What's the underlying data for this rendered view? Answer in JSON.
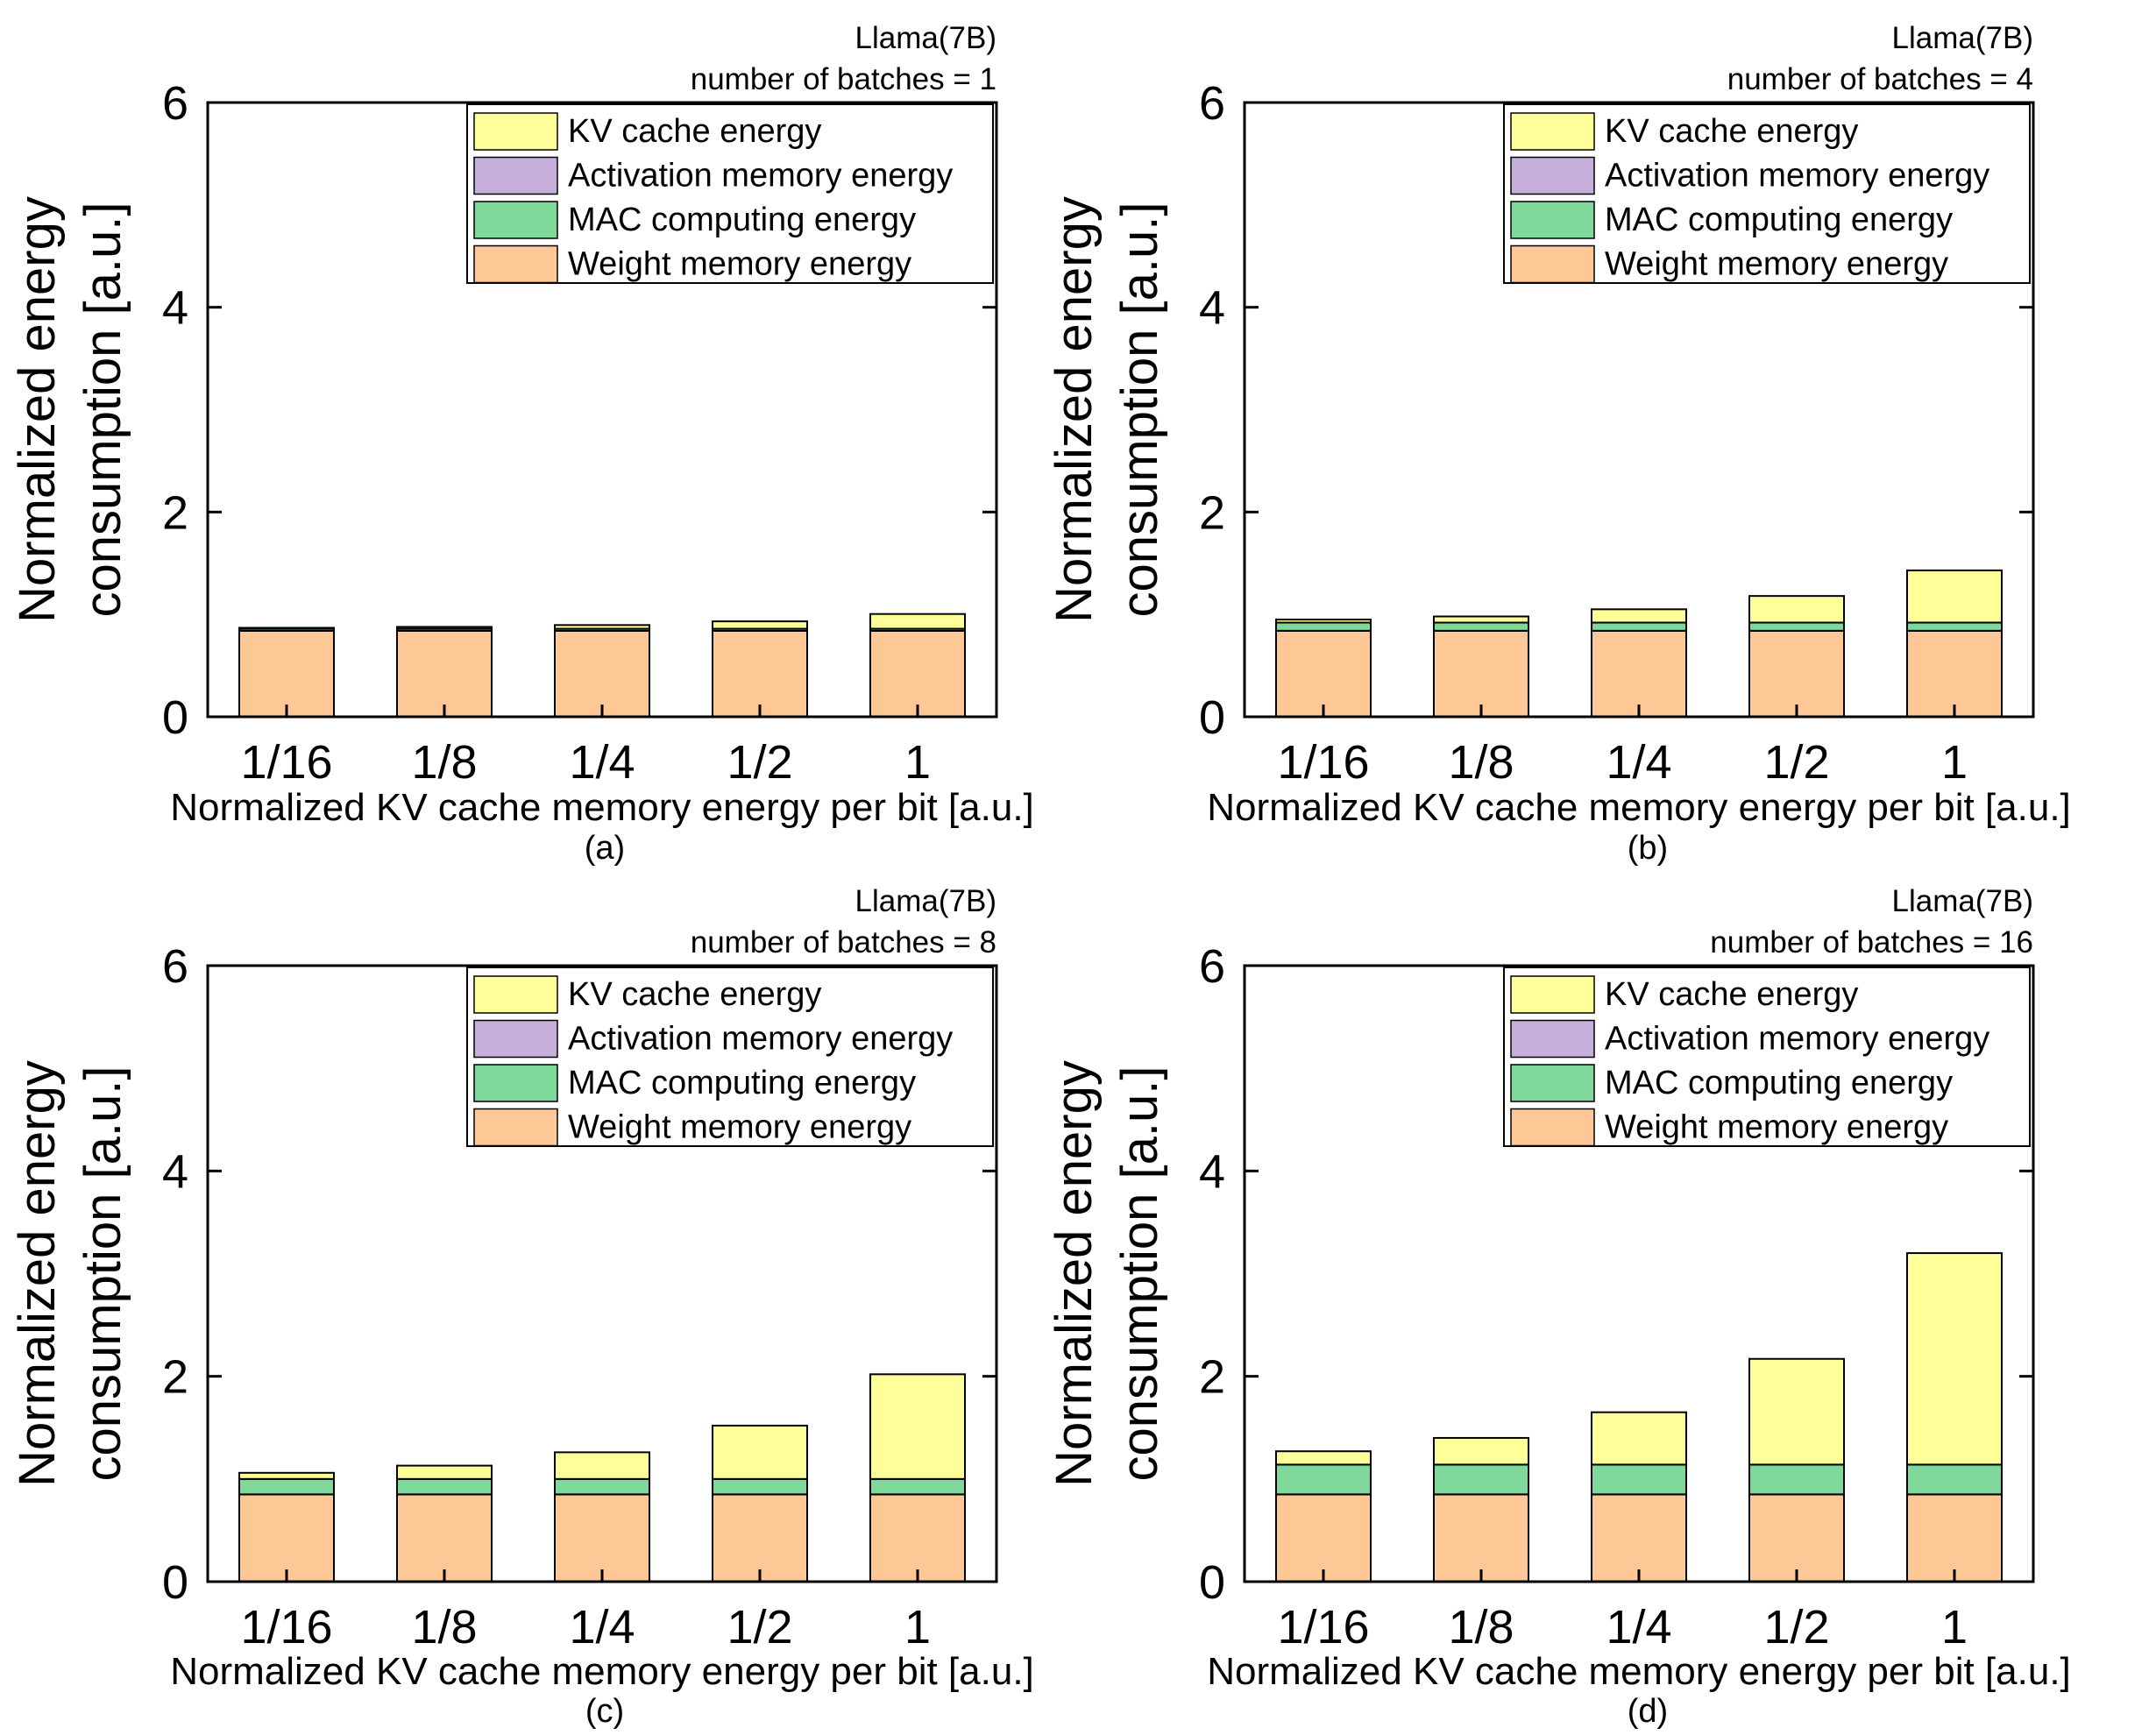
{
  "chart_data": [
    {
      "type": "bar",
      "stacked": true,
      "subfigure_label": "(a)",
      "annotations": [
        "Llama(7B)",
        "number of batches = 1"
      ],
      "xlabel": "Normalized KV cache memory energy per bit [a.u.]",
      "ylabel": [
        "Normalized energy",
        "consumption [a.u.]"
      ],
      "ylim": [
        0,
        6
      ],
      "yticks": [
        "0",
        "2",
        "4",
        "6"
      ],
      "categories": [
        "1/16",
        "1/8",
        "1/4",
        "1/2",
        "1"
      ],
      "legend_position": "top-right",
      "series": [
        {
          "name": "Weight memory energy",
          "color": "#FDC896",
          "values": [
            0.84,
            0.84,
            0.84,
            0.84,
            0.84
          ]
        },
        {
          "name": "MAC computing energy",
          "color": "#7FD89A",
          "values": [
            0.02,
            0.02,
            0.02,
            0.02,
            0.02
          ]
        },
        {
          "name": "Activation memory energy",
          "color": "#C6B0DB",
          "values": [
            0.0,
            0.0,
            0.0,
            0.0,
            0.0
          ]
        },
        {
          "name": "KV cache energy",
          "color": "#FFFF99",
          "values": [
            0.009,
            0.018,
            0.036,
            0.072,
            0.144
          ]
        }
      ]
    },
    {
      "type": "bar",
      "stacked": true,
      "subfigure_label": "(b)",
      "annotations": [
        "Llama(7B)",
        "number of batches = 4"
      ],
      "xlabel": "Normalized KV cache memory energy per bit [a.u.]",
      "ylabel": [
        "Normalized energy",
        "consumption [a.u.]"
      ],
      "ylim": [
        0,
        6
      ],
      "yticks": [
        "0",
        "2",
        "4",
        "6"
      ],
      "categories": [
        "1/16",
        "1/8",
        "1/4",
        "1/2",
        "1"
      ],
      "legend_position": "top-right",
      "series": [
        {
          "name": "Weight memory energy",
          "color": "#FDC896",
          "values": [
            0.84,
            0.84,
            0.84,
            0.84,
            0.84
          ]
        },
        {
          "name": "MAC computing energy",
          "color": "#7FD89A",
          "values": [
            0.08,
            0.08,
            0.08,
            0.08,
            0.08
          ]
        },
        {
          "name": "Activation memory energy",
          "color": "#C6B0DB",
          "values": [
            0.0,
            0.0,
            0.0,
            0.0,
            0.0
          ]
        },
        {
          "name": "KV cache energy",
          "color": "#FFFF99",
          "values": [
            0.03,
            0.06,
            0.13,
            0.26,
            0.51
          ]
        }
      ]
    },
    {
      "type": "bar",
      "stacked": true,
      "subfigure_label": "(c)",
      "annotations": [
        "Llama(7B)",
        "number of batches = 8"
      ],
      "xlabel": "Normalized KV cache memory energy per bit [a.u.]",
      "ylabel": [
        "Normalized energy",
        "consumption [a.u.]"
      ],
      "ylim": [
        0,
        6
      ],
      "yticks": [
        "0",
        "2",
        "4",
        "6"
      ],
      "categories": [
        "1/16",
        "1/8",
        "1/4",
        "1/2",
        "1"
      ],
      "legend_position": "top-right",
      "series": [
        {
          "name": "Weight memory energy",
          "color": "#FDC896",
          "values": [
            0.85,
            0.85,
            0.85,
            0.85,
            0.85
          ]
        },
        {
          "name": "MAC computing energy",
          "color": "#7FD89A",
          "values": [
            0.15,
            0.15,
            0.15,
            0.15,
            0.15
          ]
        },
        {
          "name": "Activation memory energy",
          "color": "#C6B0DB",
          "values": [
            0.0,
            0.0,
            0.0,
            0.0,
            0.0
          ]
        },
        {
          "name": "KV cache energy",
          "color": "#FFFF99",
          "values": [
            0.06,
            0.13,
            0.26,
            0.52,
            1.02
          ]
        }
      ]
    },
    {
      "type": "bar",
      "stacked": true,
      "subfigure_label": "(d)",
      "annotations": [
        "Llama(7B)",
        "number of batches = 16"
      ],
      "xlabel": "Normalized KV cache memory energy per bit [a.u.]",
      "ylabel": [
        "Normalized energy",
        "consumption [a.u.]"
      ],
      "ylim": [
        0,
        6
      ],
      "yticks": [
        "0",
        "2",
        "4",
        "6"
      ],
      "categories": [
        "1/16",
        "1/8",
        "1/4",
        "1/2",
        "1"
      ],
      "legend_position": "top-right",
      "series": [
        {
          "name": "Weight memory energy",
          "color": "#FDC896",
          "values": [
            0.85,
            0.85,
            0.85,
            0.85,
            0.85
          ]
        },
        {
          "name": "MAC computing energy",
          "color": "#7FD89A",
          "values": [
            0.29,
            0.29,
            0.29,
            0.29,
            0.29
          ]
        },
        {
          "name": "Activation memory energy",
          "color": "#C6B0DB",
          "values": [
            0.0,
            0.0,
            0.0,
            0.0,
            0.0
          ]
        },
        {
          "name": "KV cache energy",
          "color": "#FFFF99",
          "values": [
            0.13,
            0.26,
            0.51,
            1.03,
            2.06
          ]
        }
      ]
    }
  ]
}
